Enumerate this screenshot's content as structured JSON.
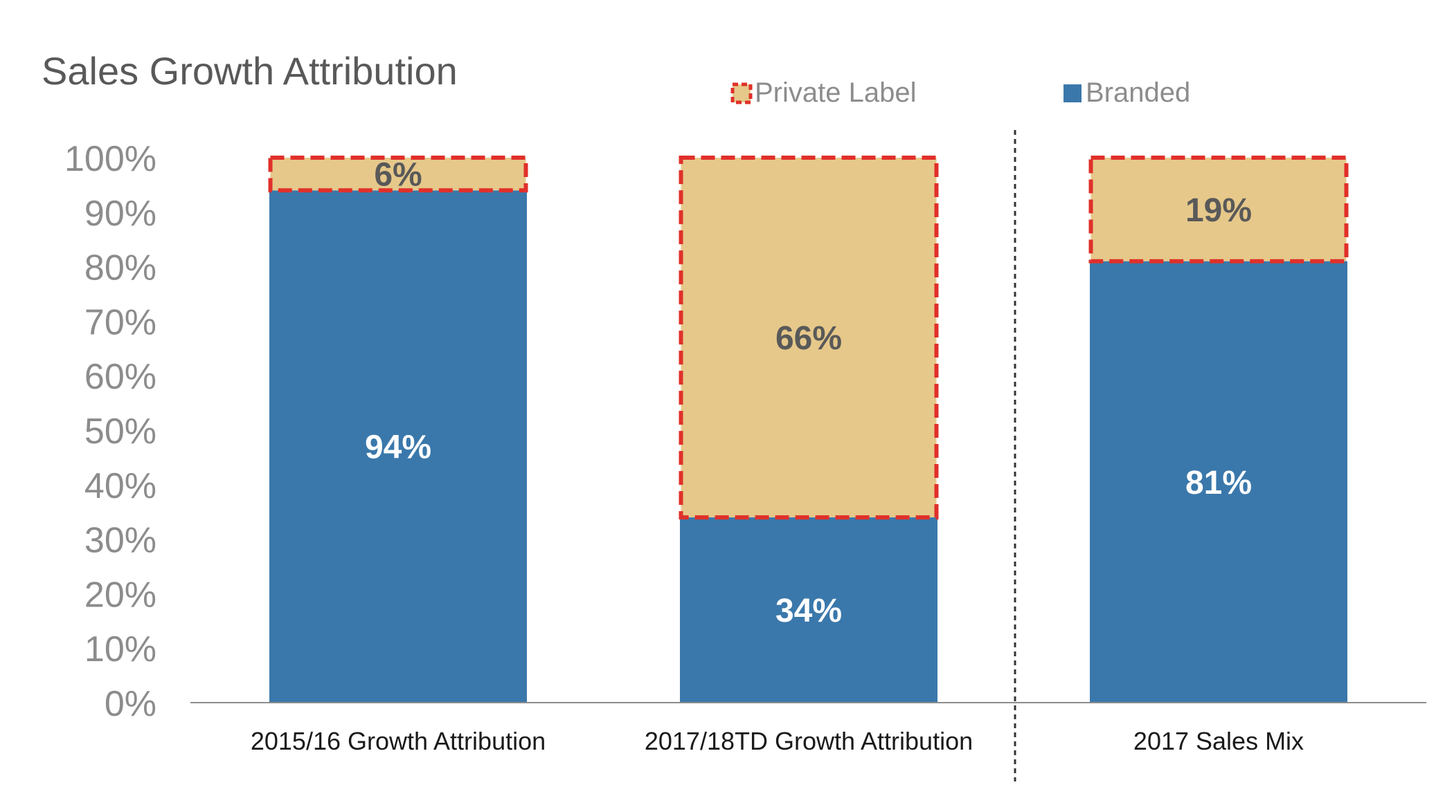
{
  "chart_data": {
    "type": "bar",
    "stacked": true,
    "title": "Sales Growth Attribution",
    "categories": [
      "2015/16 Growth Attribution",
      "2017/18TD Growth Attribution",
      "2017 Sales Mix"
    ],
    "series": [
      {
        "name": "Branded",
        "values": [
          94,
          34,
          81
        ],
        "labels": [
          "94%",
          "34%",
          "81%"
        ],
        "color": "#3a78ab",
        "label_color": "#ffffff"
      },
      {
        "name": "Private Label",
        "values": [
          6,
          66,
          19
        ],
        "labels": [
          "6%",
          "66%",
          "19%"
        ],
        "color": "#e6c88a",
        "border_color": "#e0302a",
        "label_color": "#595959"
      }
    ],
    "ylim": [
      0,
      100
    ],
    "yticks": [
      "0%",
      "10%",
      "20%",
      "30%",
      "40%",
      "50%",
      "60%",
      "70%",
      "80%",
      "90%",
      "100%"
    ],
    "xlabel": "",
    "ylabel": "",
    "grid": false,
    "legend_position": "top-right",
    "legend_order": [
      "Private Label",
      "Branded"
    ],
    "separator": "dashed vertical line between second and third bars"
  }
}
